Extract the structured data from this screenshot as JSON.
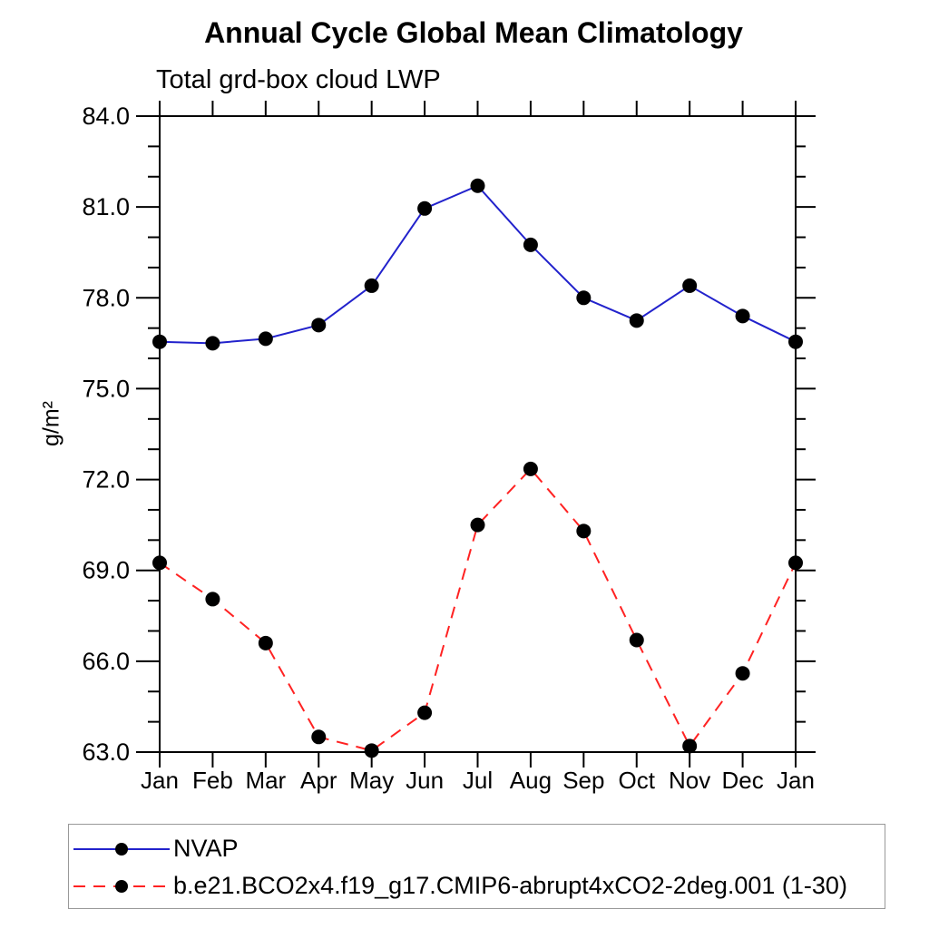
{
  "header": {
    "title": "Annual Cycle Global Mean Climatology",
    "subtitle": "Total grd-box cloud LWP"
  },
  "chart_data": {
    "type": "line",
    "title": "Annual Cycle Global Mean Climatology",
    "subtitle": "Total grd-box cloud LWP",
    "xlabel": "",
    "ylabel": "g/m²",
    "x": [
      "Jan",
      "Feb",
      "Mar",
      "Apr",
      "May",
      "Jun",
      "Jul",
      "Aug",
      "Sep",
      "Oct",
      "Nov",
      "Dec",
      "Jan"
    ],
    "ylim": [
      63.0,
      84.0
    ],
    "ytick_major_step": 3.0,
    "ytick_minor_step": 1.0,
    "ytick_labels": [
      "63.0",
      "66.0",
      "69.0",
      "72.0",
      "75.0",
      "78.0",
      "81.0",
      "84.0"
    ],
    "grid": false,
    "legend_position": "bottom-left-box",
    "axis_color": "#000000",
    "series": [
      {
        "name": "NVAP",
        "color": "#2222cc",
        "style": "solid",
        "marker": "circle",
        "marker_color": "#000000",
        "values": [
          76.55,
          76.5,
          76.65,
          77.1,
          78.4,
          80.95,
          81.7,
          79.75,
          78.0,
          77.25,
          78.4,
          77.4,
          76.55
        ]
      },
      {
        "name": "b.e21.BCO2x4.f19_g17.CMIP6-abrupt4xCO2-2deg.001 (1-30)",
        "color": "#ff2222",
        "style": "dashed",
        "marker": "circle",
        "marker_color": "#000000",
        "values": [
          69.25,
          68.05,
          66.6,
          63.5,
          63.05,
          64.3,
          70.5,
          72.35,
          70.3,
          66.7,
          63.2,
          65.6,
          69.25
        ]
      }
    ]
  }
}
